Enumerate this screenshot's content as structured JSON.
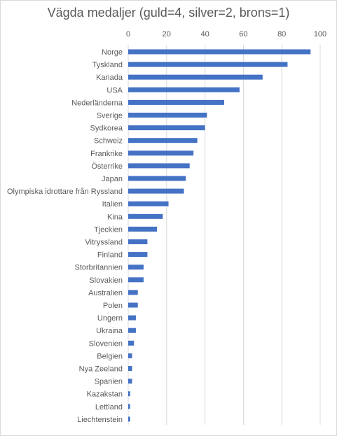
{
  "chart_data": {
    "type": "bar",
    "orientation": "horizontal",
    "title": "Vägda medaljer (guld=4, silver=2, brons=1)",
    "xlabel": "",
    "ylabel": "",
    "xlim": [
      0,
      100
    ],
    "xticks": [
      0,
      20,
      40,
      60,
      80,
      100
    ],
    "x_axis_position": "top",
    "grid": true,
    "legend": "none",
    "bar_color": "#4472c4",
    "grid_color": "#d9d9d9",
    "categories": [
      "Norge",
      "Tyskland",
      "Kanada",
      "USA",
      "Nederländerna",
      "Sverige",
      "Sydkorea",
      "Schweiz",
      "Frankrike",
      "Österrike",
      "Japan",
      "Olympiska idrottare från Ryssland",
      "Italien",
      "Kina",
      "Tjeckien",
      "Vitryssland",
      "Finland",
      "Storbritannien",
      "Slovakien",
      "Australien",
      "Polen",
      "Ungern",
      "Ukraina",
      "Slovenien",
      "Belgien",
      "Nya Zeeland",
      "Spanien",
      "Kazakstan",
      "Lettland",
      "Liechtenstein"
    ],
    "values": [
      95,
      83,
      70,
      58,
      50,
      41,
      40,
      36,
      34,
      32,
      30,
      29,
      21,
      18,
      15,
      10,
      10,
      8,
      8,
      5,
      5,
      4,
      4,
      3,
      2,
      2,
      2,
      1,
      1,
      1
    ]
  }
}
